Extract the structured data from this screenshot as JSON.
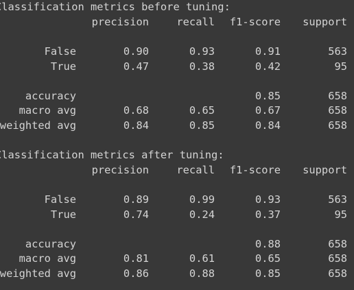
{
  "reports": [
    {
      "title": "Classification metrics before tuning:",
      "headers": [
        "precision",
        "recall",
        "f1-score",
        "support"
      ],
      "rows": [
        {
          "label": "False",
          "precision": "0.90",
          "recall": "0.93",
          "f1": "0.91",
          "support": "563"
        },
        {
          "label": "True",
          "precision": "0.47",
          "recall": "0.38",
          "f1": "0.42",
          "support": "95"
        }
      ],
      "summary": [
        {
          "label": "accuracy",
          "precision": "",
          "recall": "",
          "f1": "0.85",
          "support": "658"
        },
        {
          "label": "macro avg",
          "precision": "0.68",
          "recall": "0.65",
          "f1": "0.67",
          "support": "658"
        },
        {
          "label": "weighted avg",
          "precision": "0.84",
          "recall": "0.85",
          "f1": "0.84",
          "support": "658"
        }
      ]
    },
    {
      "title": "Classification metrics after tuning:",
      "headers": [
        "precision",
        "recall",
        "f1-score",
        "support"
      ],
      "rows": [
        {
          "label": "False",
          "precision": "0.89",
          "recall": "0.99",
          "f1": "0.93",
          "support": "563"
        },
        {
          "label": "True",
          "precision": "0.74",
          "recall": "0.24",
          "f1": "0.37",
          "support": "95"
        }
      ],
      "summary": [
        {
          "label": "accuracy",
          "precision": "",
          "recall": "",
          "f1": "0.88",
          "support": "658"
        },
        {
          "label": "macro avg",
          "precision": "0.81",
          "recall": "0.61",
          "f1": "0.65",
          "support": "658"
        },
        {
          "label": "weighted avg",
          "precision": "0.86",
          "recall": "0.88",
          "f1": "0.85",
          "support": "658"
        }
      ]
    }
  ]
}
